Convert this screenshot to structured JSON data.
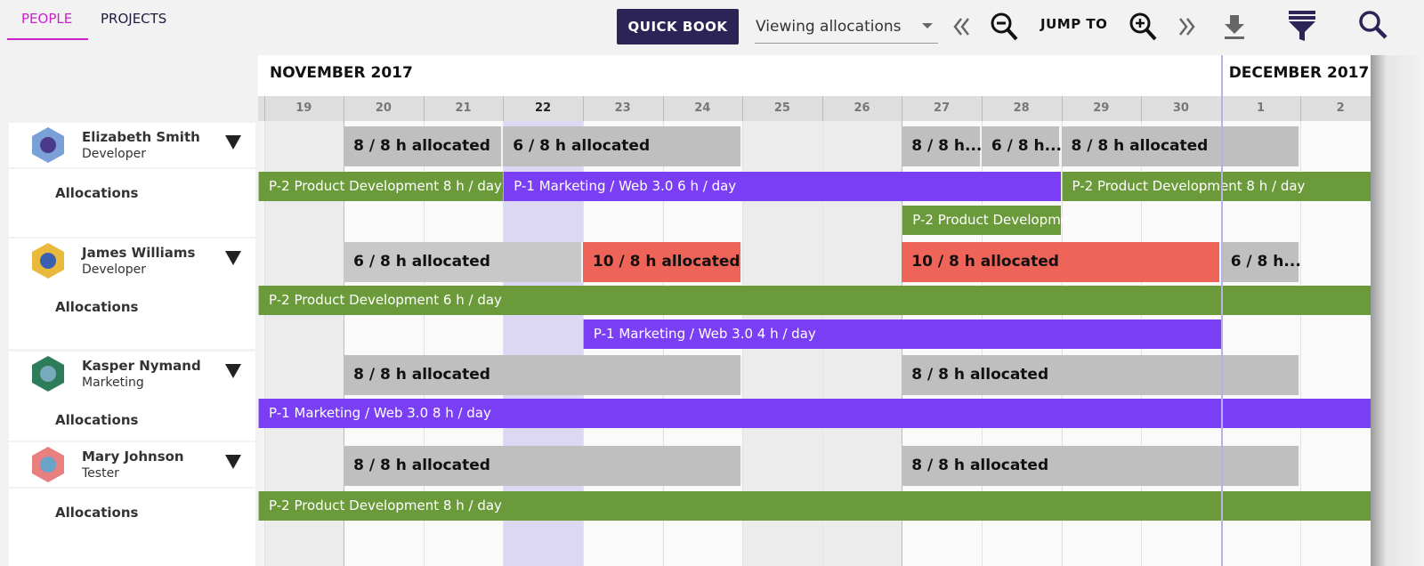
{
  "tabs": {
    "people": "PEOPLE",
    "projects": "PROJECTS"
  },
  "toolbar": {
    "quick_book": "QUICK BOOK",
    "view_select": "Viewing allocations",
    "jump_to": "JUMP TO"
  },
  "timeline": {
    "months": [
      "NOVEMBER 2017",
      "DECEMBER 2017"
    ],
    "days": [
      "19",
      "20",
      "21",
      "22",
      "23",
      "24",
      "25",
      "26",
      "27",
      "28",
      "29",
      "30",
      "1",
      "2"
    ]
  },
  "people": [
    {
      "name": "Elizabeth Smith",
      "role": "Developer",
      "allocations_label": "Allocations",
      "summaries": [
        "8 / 8 h allocated",
        "6 / 8 h allocated",
        "8 / 8 h...",
        "6 / 8 h...",
        "8 / 8 h allocated"
      ],
      "allocations": [
        "P-2 Product Development 8 h / day",
        "P-1 Marketing / Web 3.0 6 h / day",
        "P-2 Product Development 8 h / day",
        "P-2 Product Developme"
      ]
    },
    {
      "name": "James Williams",
      "role": "Developer",
      "allocations_label": "Allocations",
      "summaries": [
        "6 / 8 h allocated",
        "10 / 8 h allocated",
        "10 / 8 h allocated",
        "6 / 8 h..."
      ],
      "allocations": [
        "P-2 Product Development 6 h / day",
        "P-1 Marketing / Web 3.0 4 h / day"
      ]
    },
    {
      "name": "Kasper Nymand",
      "role": "Marketing",
      "allocations_label": "Allocations",
      "summaries": [
        "8 / 8 h allocated",
        "8 / 8 h allocated"
      ],
      "allocations": [
        "P-1 Marketing / Web 3.0 8 h / day"
      ]
    },
    {
      "name": "Mary Johnson",
      "role": "Tester",
      "allocations_label": "Allocations",
      "summaries": [
        "8 / 8 h allocated",
        "8 / 8 h allocated"
      ],
      "allocations": [
        "P-2 Product Development 8 h / day"
      ]
    }
  ]
}
